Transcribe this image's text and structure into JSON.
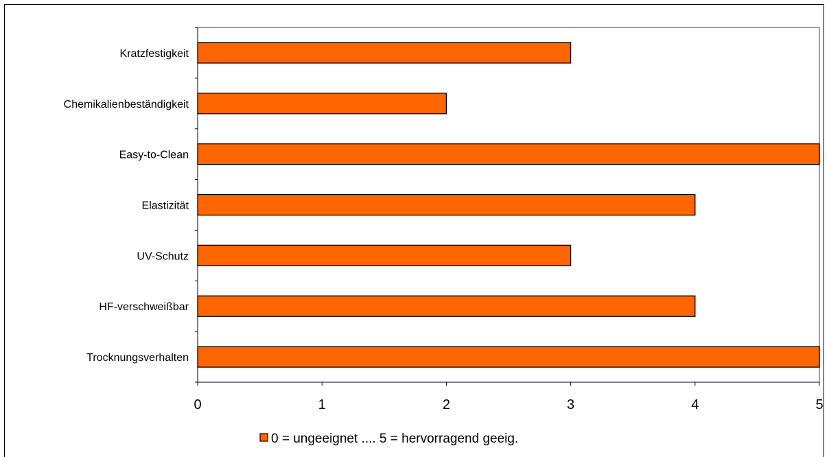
{
  "chart_data": {
    "type": "bar",
    "orientation": "horizontal",
    "categories": [
      "Kratzfestigkeit",
      "Chemikalienbeständigkeit",
      "Easy-to-Clean",
      "Elastizität",
      "UV-Schutz",
      "HF-verschweißbar",
      "Trocknungsverhalten"
    ],
    "series": [
      {
        "name": "0 = ungeeignet .... 5 = hervorragend geeig.",
        "values": [
          3,
          2,
          5,
          4,
          3,
          4,
          5
        ],
        "color": "#FF6600"
      }
    ],
    "xlim": [
      0,
      5
    ],
    "xticks": [
      "0",
      "1",
      "2",
      "3",
      "4",
      "5"
    ],
    "grid": false,
    "legend_position": "bottom",
    "title": "",
    "xlabel": "",
    "ylabel": ""
  }
}
